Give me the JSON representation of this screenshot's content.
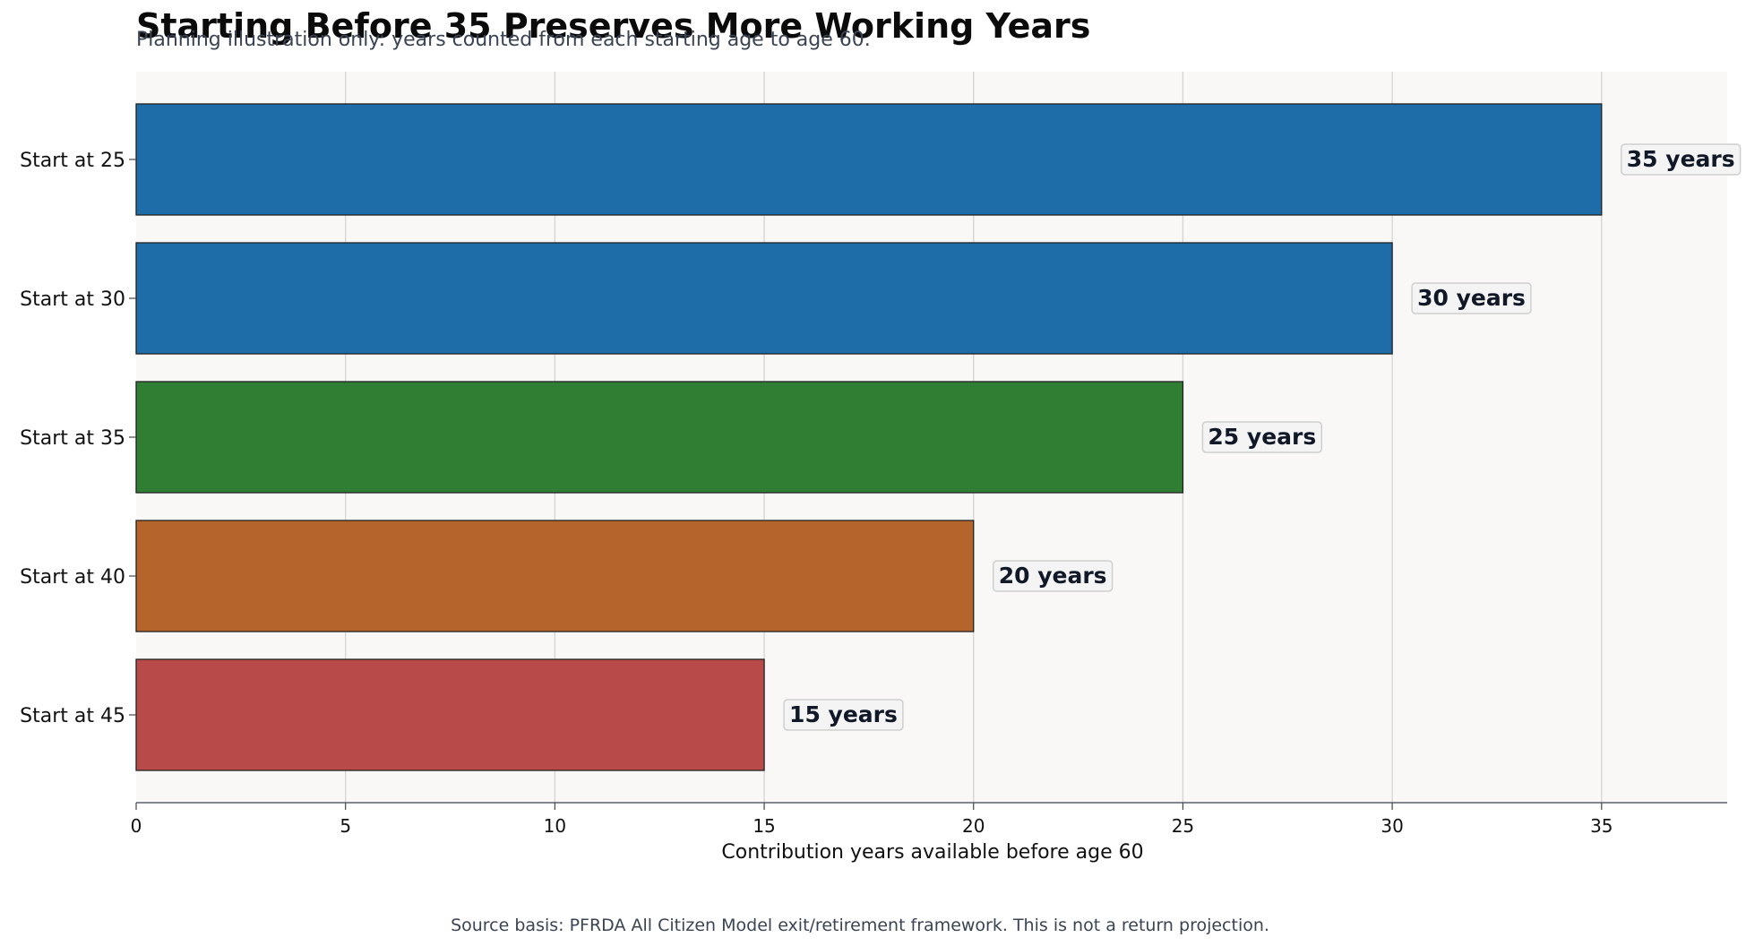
{
  "chart_data": {
    "type": "bar",
    "orientation": "horizontal",
    "title": "Starting Before 35 Preserves More Working Years",
    "subtitle": "Planning illustration only: years counted from each starting age to age 60.",
    "categories": [
      "Start at 25",
      "Start at 30",
      "Start at 35",
      "Start at 40",
      "Start at 45"
    ],
    "values": [
      35,
      30,
      25,
      20,
      15
    ],
    "data_labels": [
      "35 years",
      "30 years",
      "25 years",
      "20 years",
      "15 years"
    ],
    "bar_colors": [
      "#1f6da8",
      "#1f6da8",
      "#2f7e33",
      "#b5652b",
      "#b94a4a"
    ],
    "xlabel": "Contribution years available before age 60",
    "ylabel": "",
    "xlim": [
      0,
      38
    ],
    "xticks": [
      0,
      5,
      10,
      15,
      20,
      25,
      30,
      35
    ],
    "grid": "vertical",
    "plot_background": "#f9f8f7",
    "source_note": "Source basis: PFRDA All Citizen Model exit/retirement framework. This is not a return projection."
  }
}
